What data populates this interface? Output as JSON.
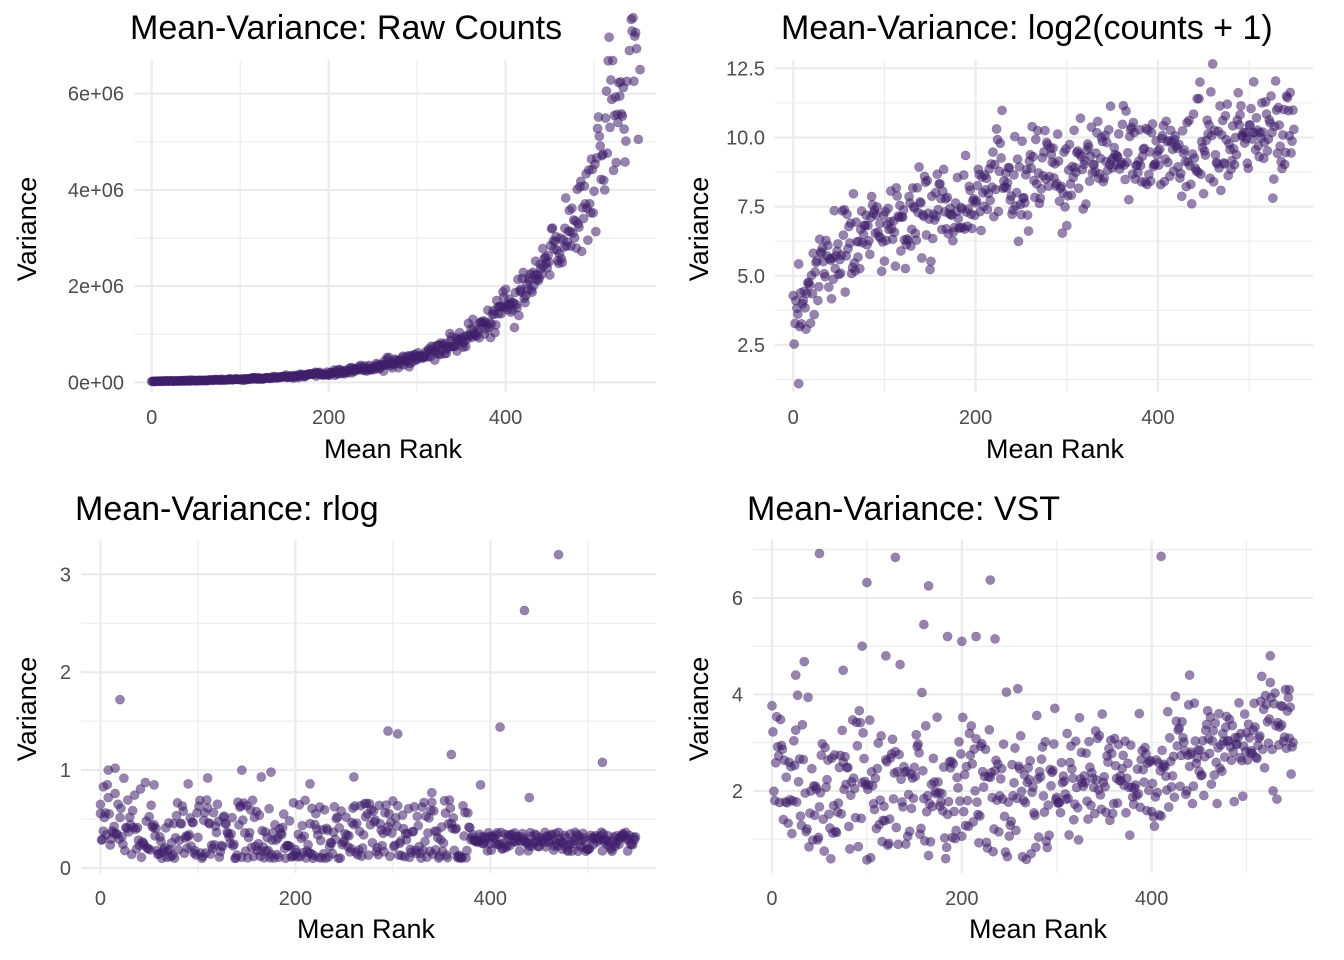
{
  "chart_data": [
    {
      "type": "scatter",
      "title": "Mean-Variance: Raw Counts",
      "xlabel": "Mean Rank",
      "ylabel": "Variance",
      "xlim": [
        -20,
        570
      ],
      "ylim": [
        -200000,
        6700000
      ],
      "xticks": [
        0,
        200,
        400
      ],
      "xtick_labels": [
        "0",
        "200",
        "400"
      ],
      "yticks": [
        0,
        2000000,
        4000000,
        6000000
      ],
      "ytick_labels": [
        "0e+00",
        "2e+06",
        "4e+06",
        "6e+06"
      ],
      "grid": true,
      "point_color": "#3f1f6b",
      "n_points": 550,
      "trend": "exponential increase with mean rank",
      "series": [
        {
          "x": [
            0,
            50,
            100,
            150,
            200,
            250,
            300,
            350,
            400,
            425,
            450,
            475,
            500,
            525,
            540,
            548,
            550
          ],
          "y": [
            0,
            40000,
            100000,
            160000,
            250000,
            350000,
            500000,
            700000,
            1000000,
            1300000,
            1600000,
            2000000,
            2600000,
            3300000,
            4200000,
            5000000,
            6500000
          ]
        }
      ]
    },
    {
      "type": "scatter",
      "title": "Mean-Variance: log2(counts + 1)",
      "xlabel": "Mean Rank",
      "ylabel": "Variance",
      "xlim": [
        -20,
        570
      ],
      "ylim": [
        0.8,
        12.8
      ],
      "xticks": [
        0,
        200,
        400
      ],
      "xtick_labels": [
        "0",
        "200",
        "400"
      ],
      "yticks": [
        2.5,
        5.0,
        7.5,
        10.0,
        12.5
      ],
      "ytick_labels": [
        "2.5",
        "5.0",
        "7.5",
        "10.0",
        "12.5"
      ],
      "grid": true,
      "point_color": "#3f1f6b",
      "n_points": 550,
      "trend": "increases from about 2.5 to about 11",
      "series": [
        {
          "x": [
            0,
            10,
            50,
            100,
            150,
            200,
            250,
            300,
            350,
            400,
            450,
            500,
            550
          ],
          "y": [
            2.5,
            1.1,
            4.5,
            5.2,
            5.6,
            6.2,
            6.8,
            7.4,
            8.0,
            8.7,
            9.6,
            10.4,
            11.2
          ]
        }
      ]
    },
    {
      "type": "scatter",
      "title": "Mean-Variance: rlog",
      "xlabel": "Mean Rank",
      "ylabel": "Variance",
      "xlim": [
        -20,
        570
      ],
      "ylim": [
        -0.05,
        3.35
      ],
      "xticks": [
        0,
        200,
        400
      ],
      "xtick_labels": [
        "0",
        "200",
        "400"
      ],
      "yticks": [
        0,
        1,
        2,
        3
      ],
      "ytick_labels": [
        "0",
        "1",
        "2",
        "3"
      ],
      "grid": true,
      "point_color": "#3f1f6b",
      "n_points": 550,
      "trend": "mostly between 0.1 and 0.7 with a few outliers",
      "series": [
        {
          "x": [
            20,
            295,
            305,
            360,
            410,
            435,
            470,
            515
          ],
          "y": [
            1.72,
            1.4,
            1.37,
            1.16,
            1.44,
            2.63,
            3.2,
            1.08
          ]
        }
      ]
    },
    {
      "type": "scatter",
      "title": "Mean-Variance: VST",
      "xlabel": "Mean Rank",
      "ylabel": "Variance",
      "xlim": [
        -20,
        570
      ],
      "ylim": [
        0.3,
        7.2
      ],
      "xticks": [
        0,
        200,
        400
      ],
      "xtick_labels": [
        "0",
        "200",
        "400"
      ],
      "yticks": [
        2,
        4,
        6
      ],
      "ytick_labels": [
        "2",
        "4",
        "6"
      ],
      "grid": true,
      "point_color": "#3f1f6b",
      "n_points": 550,
      "trend": "scattered roughly between 0.5 and 5 with a few points near 6-7",
      "series": [
        {
          "x": [
            50,
            100,
            130,
            165,
            230,
            410
          ],
          "y": [
            6.92,
            6.32,
            6.84,
            6.25,
            6.37,
            6.86
          ]
        }
      ]
    }
  ]
}
